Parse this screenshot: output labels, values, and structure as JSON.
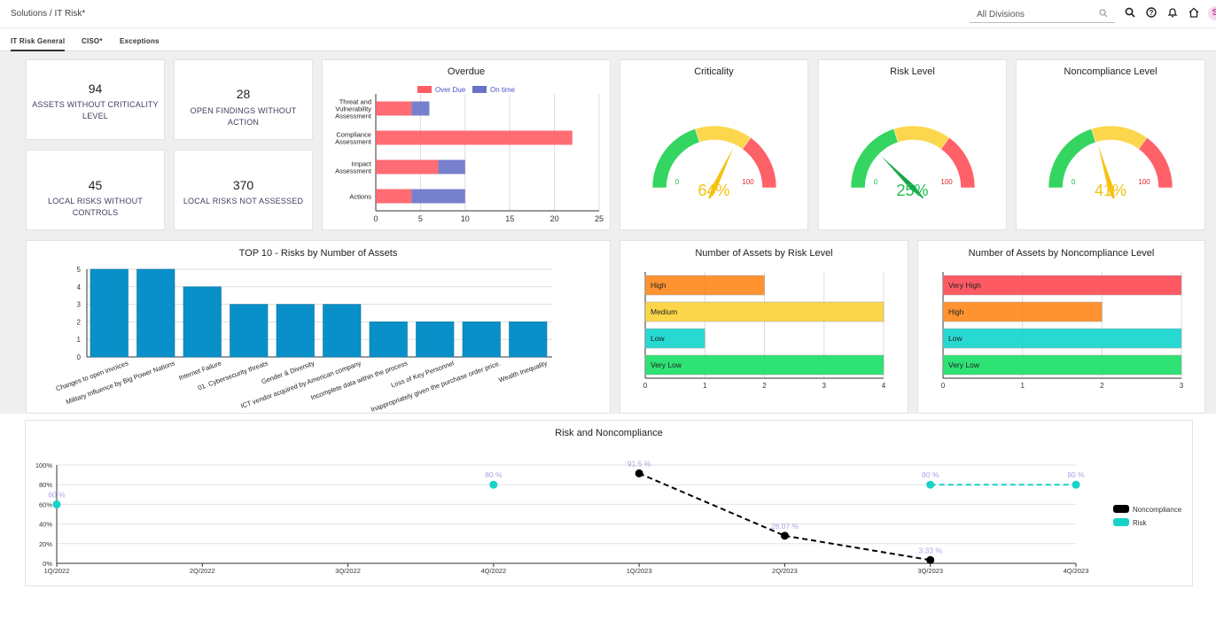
{
  "header": {
    "breadcrumb": "Solutions / IT Risk*",
    "division_placeholder": "All Divisions",
    "avatar_initial": "S",
    "icons": [
      "search-icon",
      "help-icon",
      "bell-icon",
      "home-icon"
    ]
  },
  "tabs": [
    {
      "label": "IT Risk General",
      "active": true
    },
    {
      "label": "CISO*",
      "active": false
    },
    {
      "label": "Exceptions",
      "active": false
    }
  ],
  "kpis": [
    {
      "value": "94",
      "label": "ASSETS WITHOUT CRITICALITY LEVEL"
    },
    {
      "value": "28",
      "label": "OPEN FINDINGS WITHOUT ACTION"
    },
    {
      "value": "45",
      "label": "LOCAL RISKS WITHOUT CONTROLS"
    },
    {
      "value": "370",
      "label": "LOCAL RISKS NOT ASSESSED"
    }
  ],
  "gauges": [
    {
      "title": "Criticality",
      "percent_label": "64%",
      "value": 64,
      "min_label": "0",
      "max_label": "100",
      "needle_color": "#f4c20d",
      "text_color": "#f4c20d"
    },
    {
      "title": "Risk Level",
      "percent_label": "25%",
      "value": 25,
      "min_label": "0",
      "max_label": "100",
      "needle_color": "#1aa34a",
      "text_color": "#1fbf4f"
    },
    {
      "title": "Noncompliance Level",
      "percent_label": "41%",
      "value": 41,
      "min_label": "0",
      "max_label": "100",
      "needle_color": "#f4c20d",
      "text_color": "#f4c20d"
    }
  ],
  "colors": {
    "overdue": "#ff5c64",
    "ontime": "#6872c6",
    "bar_blue": "#0a90c8",
    "high": "#ff8a20",
    "medium": "#fcd33b",
    "low": "#16d6ce",
    "very_low": "#1de06a",
    "very_high": "#ff4d57",
    "noncompliance": "#000000",
    "risk": "#18d1c8",
    "gauge_green": "#1fd14f",
    "gauge_yellow": "#fcd33b",
    "gauge_red": "#ff5058"
  },
  "chart_data": [
    {
      "type": "bar",
      "orientation": "horizontal-stacked",
      "title": "Overdue",
      "categories": [
        "Threat and Vulnerability Assessment",
        "Compliance Assessment",
        "Impact Assessment",
        "Actions"
      ],
      "category_lines": [
        [
          "Threat and",
          "Vulnerability",
          "Assessment"
        ],
        [
          "Compliance",
          "Assessment"
        ],
        [
          "Impact",
          "Assessment"
        ],
        [
          "Actions"
        ]
      ],
      "series": [
        {
          "name": "Over Due",
          "values": [
            4,
            22,
            7,
            4
          ]
        },
        {
          "name": "On time",
          "values": [
            2,
            0,
            3,
            6
          ]
        }
      ],
      "xlim": [
        0,
        25
      ],
      "xticks": [
        "0",
        "5",
        "10",
        "15",
        "20",
        "25"
      ],
      "legend": "top"
    },
    {
      "type": "bar",
      "title": "TOP 10 - Risks by Number of Assets",
      "categories": [
        "Changes to open invoices",
        "Military Influence by Big Power Nations",
        "Internet Failure",
        "01. Cybersecurity threats",
        "Gender & Diversity",
        "ICT vendor acquired by American company",
        "Incomplete data within the process",
        "Loss of Key Personnel",
        "Inappropriately given the purchase order price.",
        "Wealth Inequality"
      ],
      "values": [
        5,
        5,
        4,
        3,
        3,
        3,
        2,
        2,
        2,
        2
      ],
      "ylim": [
        0,
        5
      ],
      "yticks": [
        "0",
        "1",
        "2",
        "3",
        "4",
        "5"
      ]
    },
    {
      "type": "bar",
      "orientation": "horizontal",
      "title": "Number of Assets by Risk Level",
      "categories": [
        "High",
        "Medium",
        "Low",
        "Very Low"
      ],
      "values": [
        2,
        4,
        1,
        4
      ],
      "xlim": [
        0,
        4
      ],
      "xticks": [
        "0",
        "1",
        "2",
        "3",
        "4"
      ]
    },
    {
      "type": "bar",
      "orientation": "horizontal",
      "title": "Number of Assets by Noncompliance Level",
      "categories": [
        "Very High",
        "High",
        "Low",
        "Very Low"
      ],
      "values": [
        3,
        2,
        3,
        3
      ],
      "xlim": [
        0,
        3
      ],
      "xticks": [
        "0",
        "1",
        "2",
        "3"
      ]
    },
    {
      "type": "line",
      "title": "Risk and Noncompliance",
      "x": [
        "1Q/2022",
        "2Q/2022",
        "3Q/2022",
        "4Q/2022",
        "1Q/2023",
        "2Q/2023",
        "3Q/2023",
        "4Q/2023"
      ],
      "ylim": [
        0,
        100
      ],
      "yticks": [
        "0%",
        "20%",
        "40%",
        "60%",
        "80%",
        "100%"
      ],
      "series": [
        {
          "name": "Noncompliance",
          "points": [
            {
              "x": "1Q/2023",
              "y": 91.5,
              "label": "91.5 %"
            },
            {
              "x": "2Q/2023",
              "y": 28.07,
              "label": "28.07 %"
            },
            {
              "x": "3Q/2023",
              "y": 3.33,
              "label": "3.33 %"
            }
          ]
        },
        {
          "name": "Risk",
          "points": [
            {
              "x": "1Q/2022",
              "y": 60,
              "label": "60 %"
            },
            {
              "x": "4Q/2022",
              "y": 80,
              "label": "80 %"
            },
            {
              "x": "3Q/2023",
              "y": 80,
              "label": "80 %"
            },
            {
              "x": "4Q/2023",
              "y": 80,
              "label": "80 %"
            }
          ]
        }
      ],
      "legend": "right"
    }
  ]
}
